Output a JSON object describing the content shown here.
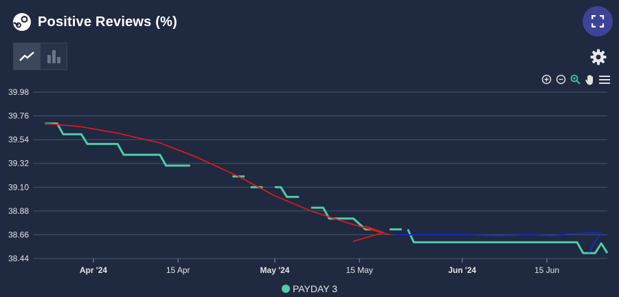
{
  "header": {
    "title": "Positive Reviews (%)"
  },
  "colors": {
    "series": "#4ecda8",
    "annotation_red": "#e01a1a",
    "annotation_blue": "#1826d9",
    "grid": "#4a546a",
    "background": "#1f2940"
  },
  "icons": {
    "logo": "steam-icon",
    "fullscreen": "fullscreen-icon",
    "line_chart": "line-chart-icon",
    "bar_chart": "bar-chart-icon",
    "settings": "gear-icon",
    "zoom_in": "zoom-in-icon",
    "zoom_out": "zoom-out-icon",
    "zoom_select": "magnifier-icon",
    "pan": "hand-icon",
    "menu": "menu-icon"
  },
  "chart_data": {
    "type": "line",
    "title": "Positive Reviews (%)",
    "xlabel": "",
    "ylabel": "",
    "ylim": [
      38.44,
      39.98
    ],
    "xlim": [
      "2024-03-22",
      "2024-06-25"
    ],
    "y_ticks": [
      "39.98",
      "39.76",
      "39.54",
      "39.32",
      "39.10",
      "38.88",
      "38.66",
      "38.44"
    ],
    "x_ticks": [
      {
        "date": "2024-04-01",
        "label": "Apr '24",
        "bold": true
      },
      {
        "date": "2024-04-15",
        "label": "15 Apr",
        "bold": false
      },
      {
        "date": "2024-05-01",
        "label": "May '24",
        "bold": true
      },
      {
        "date": "2024-05-15",
        "label": "15 May",
        "bold": false
      },
      {
        "date": "2024-06-01",
        "label": "Jun '24",
        "bold": true
      },
      {
        "date": "2024-06-15",
        "label": "15 Jun",
        "bold": false
      }
    ],
    "grid": true,
    "legend_position": "bottom-center",
    "series": [
      {
        "name": "PAYDAY 3",
        "segments": [
          [
            [
              "2024-03-24",
              39.69
            ],
            [
              "2024-03-26",
              39.69
            ],
            [
              "2024-03-27",
              39.59
            ],
            [
              "2024-03-30",
              39.59
            ],
            [
              "2024-03-31",
              39.5
            ],
            [
              "2024-04-05",
              39.5
            ],
            [
              "2024-04-06",
              39.4
            ],
            [
              "2024-04-12",
              39.4
            ],
            [
              "2024-04-13",
              39.3
            ],
            [
              "2024-04-17",
              39.3
            ]
          ],
          [
            [
              "2024-04-24",
              39.2
            ],
            [
              "2024-04-26",
              39.2
            ]
          ],
          [
            [
              "2024-04-27",
              39.1
            ],
            [
              "2024-04-29",
              39.1
            ]
          ],
          [
            [
              "2024-05-01",
              39.1
            ],
            [
              "2024-05-02",
              39.1
            ],
            [
              "2024-05-03",
              39.01
            ],
            [
              "2024-05-05",
              39.01
            ]
          ],
          [
            [
              "2024-05-07",
              38.91
            ],
            [
              "2024-05-09",
              38.91
            ],
            [
              "2024-05-10",
              38.81
            ],
            [
              "2024-05-14",
              38.81
            ],
            [
              "2024-05-16",
              38.71
            ],
            [
              "2024-05-17",
              38.71
            ]
          ],
          [
            [
              "2024-05-20",
              38.71
            ],
            [
              "2024-05-22",
              38.71
            ]
          ],
          [
            [
              "2024-05-23",
              38.71
            ],
            [
              "2024-05-24",
              38.59
            ],
            [
              "2024-06-20",
              38.59
            ],
            [
              "2024-06-21",
              38.49
            ],
            [
              "2024-06-23",
              38.49
            ],
            [
              "2024-06-24",
              38.58
            ],
            [
              "2024-06-25",
              38.49
            ]
          ]
        ]
      }
    ],
    "annotations": [
      {
        "color": "#e01a1a",
        "points": [
          [
            "2024-03-24",
            39.69
          ],
          [
            "2024-03-30",
            39.66
          ],
          [
            "2024-04-05",
            39.6
          ],
          [
            "2024-04-12",
            39.51
          ],
          [
            "2024-04-18",
            39.38
          ],
          [
            "2024-04-25",
            39.2
          ],
          [
            "2024-05-01",
            39.02
          ],
          [
            "2024-05-07",
            38.88
          ],
          [
            "2024-05-13",
            38.77
          ],
          [
            "2024-05-18",
            38.69
          ],
          [
            "2024-05-20",
            38.66
          ]
        ]
      },
      {
        "color": "#e01a1a",
        "points": [
          [
            "2024-05-16",
            38.74
          ],
          [
            "2024-05-19",
            38.68
          ],
          [
            "2024-05-14",
            38.6
          ]
        ]
      },
      {
        "color": "#1826d9",
        "points": [
          [
            "2024-05-21",
            38.66
          ],
          [
            "2024-05-25",
            38.66
          ],
          [
            "2024-06-01",
            38.66
          ],
          [
            "2024-06-07",
            38.65
          ],
          [
            "2024-06-12",
            38.66
          ],
          [
            "2024-06-16",
            38.65
          ],
          [
            "2024-06-19",
            38.67
          ],
          [
            "2024-06-23",
            38.68
          ],
          [
            "2024-06-24",
            38.67
          ],
          [
            "2024-06-23",
            38.6
          ],
          [
            "2024-06-22",
            38.5
          ]
        ]
      }
    ]
  },
  "legend": {
    "label": "PAYDAY 3"
  }
}
